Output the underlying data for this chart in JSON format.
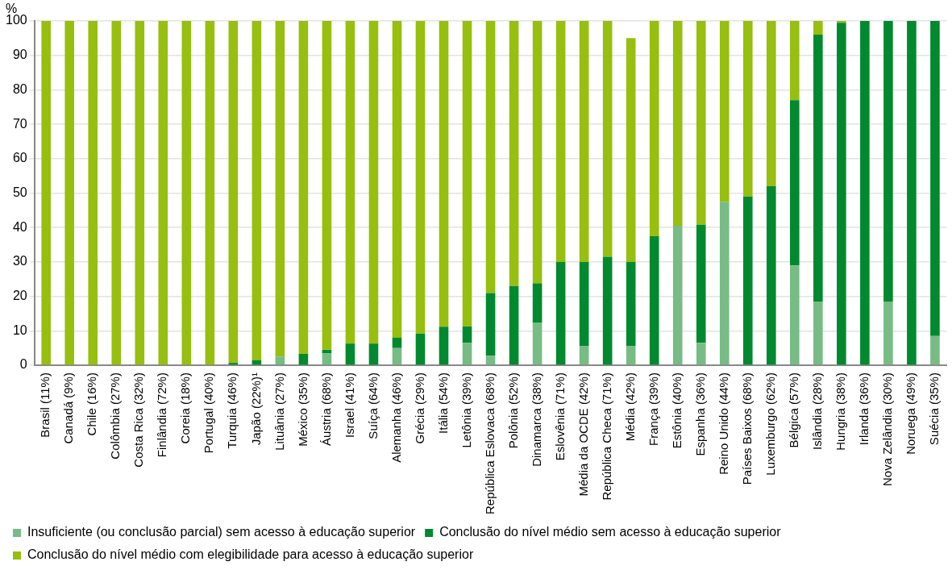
{
  "chart_data": {
    "type": "bar",
    "stacked": true,
    "ylabel": "%",
    "categories": [
      "Brasil (11%)",
      "Canadá (9%)",
      "Chile (16%)",
      "Colômbia (27%)",
      "Costa Rica (32%)",
      "Finlândia (72%)",
      "Coreia (18%)",
      "Portugal (40%)",
      "Turquia (46%)",
      "Japão (22%)¹",
      "Lituânia (27%)",
      "México (35%)",
      "Áustria (68%)",
      "Israel (41%)",
      "Suíça (64%)",
      "Alemanha (46%)",
      "Grécia (29%)",
      "Itália (54%)",
      "Letônia (39%)",
      "República Eslovaca (68%)",
      "Polônia (52%)",
      "Dinamarca (38%)",
      "Eslovênia (71%)",
      "Média da OCDE (42%)",
      "República Checa (71%)",
      "Média (42%)",
      "França (39%)",
      "Estônia (40%)",
      "Espanha (36%)",
      "Reino Unido (44%)",
      "Países Baixos (68%)",
      "Luxemburgo (62%)",
      "Bélgica (57%)",
      "Islândia (28%)",
      "Hungria (38%)",
      "Irlanda (36%)",
      "Nova Zelândia (30%)",
      "Noruega (49%)",
      "Suécia (35%)"
    ],
    "series": [
      {
        "name": "Insuficiente (ou conclusão parcial) sem acesso à educação superior",
        "color": "#77bc84",
        "values": [
          0,
          0,
          0,
          0,
          0,
          0,
          0,
          0,
          0,
          0,
          2.5,
          0,
          3.5,
          0,
          0,
          5,
          0,
          0,
          6.5,
          2.8,
          0,
          12.3,
          0,
          5.5,
          0,
          5.5,
          0,
          40.5,
          6.5,
          47.5,
          0,
          0,
          29,
          18.5,
          0,
          0,
          18.5,
          0,
          8.5
        ]
      },
      {
        "name": "Conclusão do nível médio sem acesso à educação superior",
        "color": "#00892e",
        "values": [
          0,
          0,
          0,
          0,
          0,
          0,
          0,
          0,
          0.7,
          1.5,
          0,
          3.3,
          1,
          6.3,
          6.3,
          3,
          9.2,
          11.2,
          4.8,
          18.2,
          23,
          11.5,
          30,
          24.5,
          31.5,
          24.5,
          37.5,
          0,
          34.3,
          0,
          49,
          52,
          48,
          77.5,
          99.5,
          100,
          81.5,
          100,
          91.5
        ]
      },
      {
        "name": "Conclusão do nível médio com elegibilidade para acesso à educação superior",
        "color": "#96bf0f",
        "values": [
          100,
          100,
          100,
          100,
          100,
          100,
          100,
          100,
          99.3,
          98.5,
          97.5,
          96.7,
          95.5,
          93.7,
          93.7,
          92,
          90.8,
          88.8,
          88.7,
          79,
          77,
          76.2,
          70,
          70,
          68.5,
          65,
          62.5,
          59.5,
          59.2,
          52.5,
          51,
          48,
          23,
          4,
          0.5,
          0,
          0,
          0,
          0
        ]
      }
    ],
    "ylim": [
      0,
      100
    ],
    "yticks": [
      0,
      10,
      20,
      30,
      40,
      50,
      60,
      70,
      80,
      90,
      100
    ],
    "grid": "y",
    "legend": "bottom"
  }
}
